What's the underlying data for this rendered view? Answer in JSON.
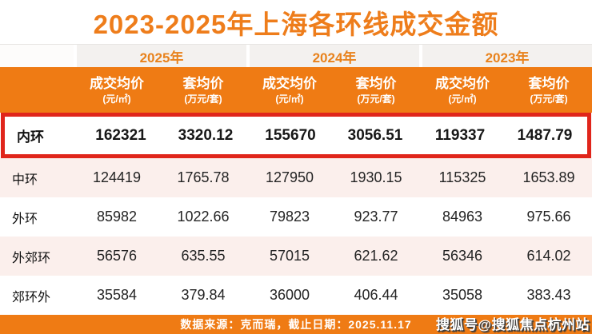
{
  "page": {
    "footer": "数据来源：克而瑞，截止日期：2025.11.17",
    "watermark": "搜狐号@搜狐焦点杭州站"
  },
  "colors": {
    "orange": "#EF7B14",
    "title_text": "#EE7D1B",
    "highlight_border_red": "#E0251B",
    "zebra_pink_row": "#FBEFEC",
    "year_cell_bg": "#F3F1EF"
  },
  "chart_data": {
    "type": "table",
    "title": "2023-2025年上海各环线成交金额",
    "year_groups": [
      "2025年",
      "2024年",
      "2023年"
    ],
    "column_headers": [
      {
        "name": "成交均价",
        "unit": "(元/㎡)"
      },
      {
        "name": "套均价",
        "unit": "(万元/套)"
      },
      {
        "name": "成交均价",
        "unit": "(元/㎡)"
      },
      {
        "name": "套均价",
        "unit": "(万元/套)"
      },
      {
        "name": "成交均价",
        "unit": "(元/㎡)"
      },
      {
        "name": "套均价",
        "unit": "(万元/套)"
      }
    ],
    "rows": [
      {
        "label": "内环",
        "highlighted": true,
        "values": [
          "162321",
          "3320.12",
          "155670",
          "3056.51",
          "119337",
          "1487.79"
        ]
      },
      {
        "label": "中环",
        "highlighted": false,
        "values": [
          "124419",
          "1765.78",
          "127950",
          "1930.15",
          "115325",
          "1653.89"
        ]
      },
      {
        "label": "外环",
        "highlighted": false,
        "values": [
          "85982",
          "1022.66",
          "79823",
          "923.77",
          "84963",
          "975.66"
        ]
      },
      {
        "label": "外郊环",
        "highlighted": false,
        "values": [
          "56576",
          "635.55",
          "57015",
          "621.62",
          "56346",
          "614.02"
        ]
      },
      {
        "label": "郊环外",
        "highlighted": false,
        "values": [
          "35584",
          "379.84",
          "36000",
          "406.44",
          "35058",
          "383.43"
        ]
      }
    ],
    "footer": "数据来源：克而瑞，截止日期：2025.11.17",
    "watermark": "搜狐号@搜狐焦点杭州站"
  }
}
